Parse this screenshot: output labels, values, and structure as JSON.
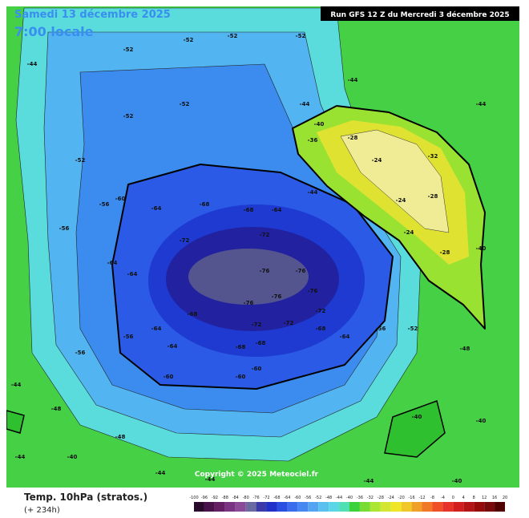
{
  "header": {
    "date": "Samedi 13 décembre 2025",
    "time": "7:00 locale",
    "run": "Run GFS 12 Z du Mercredi 3 décembre 2025"
  },
  "footer": {
    "title": "Temp. 10hPa (stratos.)",
    "lead": "(+ 234h)",
    "copyright": "Copyright © 2025 Meteociel.fr"
  },
  "colorbar": {
    "ticks": [
      -100,
      -96,
      -92,
      -88,
      -84,
      -80,
      -76,
      -72,
      -68,
      -64,
      -60,
      -56,
      -52,
      -48,
      -44,
      -40,
      -36,
      -32,
      -28,
      -24,
      -20,
      -16,
      -12,
      -8,
      -4,
      0,
      4,
      8,
      12,
      16,
      20
    ],
    "colors": [
      "#2a0a2a",
      "#4a124a",
      "#641e64",
      "#7a3282",
      "#8a4a98",
      "#6a6aa0",
      "#3a3aa8",
      "#2030c8",
      "#2a4ee0",
      "#3a6cee",
      "#4688f0",
      "#52a4f2",
      "#5ac0f0",
      "#5ad6e6",
      "#50e0b4",
      "#3cd23c",
      "#78dc32",
      "#aae632",
      "#d2e632",
      "#f0e628",
      "#f0c828",
      "#f0a028",
      "#f07828",
      "#f05028",
      "#e63228",
      "#d21e1e",
      "#b41414",
      "#960a0a",
      "#780a0a",
      "#500000"
    ]
  },
  "map": {
    "labels": [
      -52,
      -52,
      -52,
      -52,
      -52,
      -52,
      -52,
      -56,
      -56,
      -60,
      -64,
      -68,
      -68,
      -64,
      -72,
      -72,
      -64,
      -64,
      -76,
      -76,
      -76,
      -76,
      -76,
      -72,
      -72,
      -72,
      -68,
      -68,
      -64,
      -64,
      -68,
      -68,
      -60,
      -60,
      -60,
      -56,
      -56,
      -64,
      -56,
      -52,
      -48,
      -44,
      -44,
      -44,
      -44,
      -44,
      -28,
      -24,
      -24,
      -28,
      -24,
      -28,
      -32,
      -36,
      -40,
      -40,
      -48,
      -44,
      -44,
      -44,
      -40,
      -40,
      -40,
      -40,
      -44,
      -48,
      -44
    ]
  }
}
